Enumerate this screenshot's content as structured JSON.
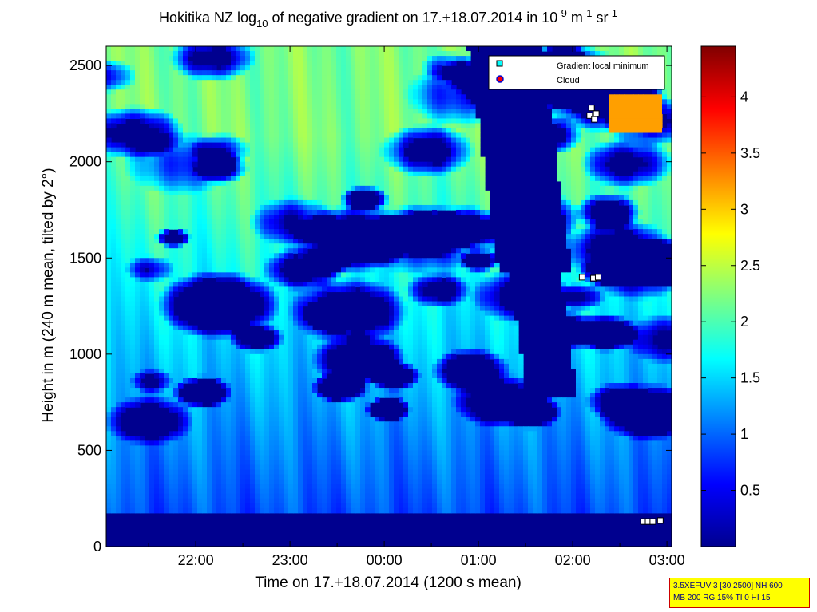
{
  "chart_data": {
    "type": "heatmap",
    "title": {
      "part1": "Hokitika NZ log",
      "sub": "10",
      "part2": " of negative gradient on 17.+18.07.2014 in 10",
      "sup1": "-9",
      "part3": " m",
      "sup2": "-1",
      "part4": " sr",
      "sup3": "-1"
    },
    "xlabel": "Time on 17.+18.07.2014 (1200 s mean)",
    "ylabel": "Height in m (240 m mean, tilted by 2°)",
    "xlim": [
      21.05,
      27.05
    ],
    "ylim": [
      0,
      2600
    ],
    "x_ticks": [
      {
        "value": 22,
        "label": "22:00"
      },
      {
        "value": 23,
        "label": "23:00"
      },
      {
        "value": 24,
        "label": "00:00"
      },
      {
        "value": 25,
        "label": "01:00"
      },
      {
        "value": 26,
        "label": "02:00"
      },
      {
        "value": 27,
        "label": "03:00"
      }
    ],
    "y_ticks": [
      0,
      500,
      1000,
      1500,
      2000,
      2500
    ],
    "colorbar": {
      "colormap": "jet",
      "range": [
        0,
        4.45
      ],
      "ticks": [
        0.5,
        1,
        1.5,
        2,
        2.5,
        3,
        3.5,
        4
      ]
    },
    "legend": {
      "placement": "top-right",
      "entries": [
        {
          "label": "Gradient local minimum",
          "marker": "square",
          "color": "#00ffff"
        },
        {
          "label": "Cloud",
          "marker": "circle",
          "color": "#ff0000"
        }
      ]
    },
    "gradient_minima": [
      {
        "x": 26.1,
        "y": 1400
      },
      {
        "x": 26.22,
        "y": 1395
      },
      {
        "x": 26.27,
        "y": 1400
      },
      {
        "x": 26.18,
        "y": 2240
      },
      {
        "x": 26.2,
        "y": 2280
      },
      {
        "x": 26.23,
        "y": 2220
      },
      {
        "x": 26.25,
        "y": 2250
      },
      {
        "x": 26.75,
        "y": 130
      },
      {
        "x": 26.8,
        "y": 130
      },
      {
        "x": 26.85,
        "y": 130
      },
      {
        "x": 26.93,
        "y": 135
      }
    ]
  },
  "info_box": {
    "line1": "3.5XEFUV 3 [30 2500] NH 600",
    "line2": "MB 200 RG 15% TI 0 HI 15"
  }
}
